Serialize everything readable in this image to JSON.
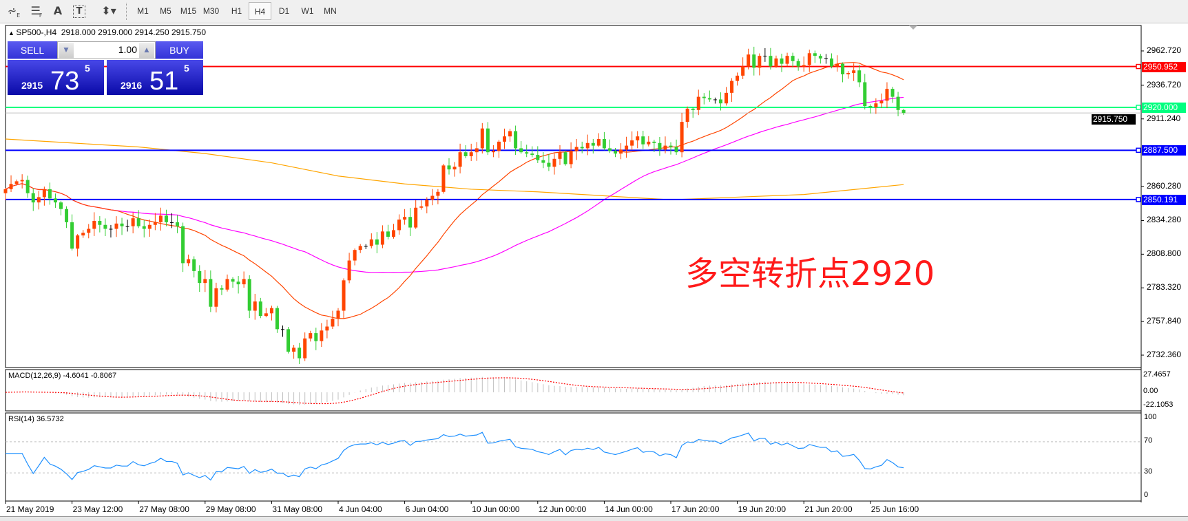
{
  "toolbar": {
    "tools": [
      "fibonacci-fan-icon",
      "fibonacci-lines-icon",
      "text-icon",
      "text-label-icon",
      "arrows-dropdown-icon"
    ],
    "periods": [
      "M1",
      "M5",
      "M15",
      "M30",
      "H1",
      "H4",
      "D1",
      "W1",
      "MN"
    ],
    "active_period": "H4"
  },
  "chart": {
    "title": "SP500-,H4",
    "ohlc": "2918.000 2919.000 2914.250 2915.750"
  },
  "trade_panel": {
    "sell_label": "SELL",
    "buy_label": "BUY",
    "lot": "1.00",
    "sell_big": "2915",
    "sell_pips": "73",
    "sell_frac": "5",
    "buy_big": "2916",
    "buy_pips": "51",
    "buy_frac": "5"
  },
  "annotation": "多空转折点2920",
  "price_axis": {
    "ticks": [
      "2962.720",
      "2936.720",
      "2911.240",
      "2860.280",
      "2834.280",
      "2808.800",
      "2783.320",
      "2757.840",
      "2732.360"
    ],
    "lines": [
      {
        "value": "2950.952",
        "color": "#FF0000",
        "text_color": "#FFFFFF"
      },
      {
        "value": "2920.000",
        "color": "#00FF7F",
        "text_color": "#FFFFFF"
      },
      {
        "value": "2887.500",
        "color": "#0000FF",
        "text_color": "#FFFFFF"
      },
      {
        "value": "2850.191",
        "color": "#0000FF",
        "text_color": "#FFFFFF"
      }
    ],
    "bid": {
      "value": "2915.750",
      "color": "#000000"
    }
  },
  "chart_data": {
    "type": "candlestick",
    "symbol": "SP500-",
    "timeframe": "H4",
    "time_labels": [
      "21 May 2019",
      "23 May 12:00",
      "27 May 08:00",
      "29 May 08:00",
      "31 May 08:00",
      "4 Jun 04:00",
      "6 Jun 04:00",
      "10 Jun 00:00",
      "12 Jun 00:00",
      "14 Jun 00:00",
      "17 Jun 20:00",
      "19 Jun 20:00",
      "21 Jun 20:00",
      "25 Jun 16:00"
    ],
    "ylim": [
      2720,
      2980
    ],
    "closes": [
      2858,
      2862,
      2864,
      2865,
      2855,
      2848,
      2852,
      2858,
      2851,
      2848,
      2843,
      2833,
      2813,
      2823,
      2825,
      2828,
      2834,
      2831,
      2828,
      2828,
      2832,
      2830,
      2830,
      2836,
      2830,
      2828,
      2831,
      2833,
      2838,
      2833,
      2833,
      2830,
      2802,
      2805,
      2796,
      2787,
      2790,
      2769,
      2783,
      2782,
      2790,
      2788,
      2786,
      2790,
      2766,
      2773,
      2762,
      2764,
      2768,
      2752,
      2752,
      2735,
      2738,
      2730,
      2745,
      2749,
      2743,
      2751,
      2754,
      2760,
      2766,
      2789,
      2804,
      2812,
      2815,
      2815,
      2820,
      2816,
      2826,
      2822,
      2827,
      2835,
      2837,
      2829,
      2844,
      2845,
      2850,
      2853,
      2856,
      2876,
      2873,
      2875,
      2886,
      2883,
      2886,
      2889,
      2904,
      2886,
      2887,
      2894,
      2898,
      2902,
      2889,
      2886,
      2885,
      2884,
      2880,
      2878,
      2875,
      2881,
      2886,
      2877,
      2887,
      2890,
      2889,
      2893,
      2891,
      2896,
      2889,
      2887,
      2885,
      2888,
      2891,
      2895,
      2898,
      2892,
      2894,
      2893,
      2888,
      2891,
      2890,
      2886,
      2909,
      2919,
      2918,
      2928,
      2927,
      2926,
      2926,
      2923,
      2931,
      2940,
      2944,
      2951,
      2960,
      2950,
      2959,
      2959,
      2951,
      2957,
      2953,
      2959,
      2955,
      2951,
      2952,
      2961,
      2959,
      2957,
      2957,
      2951,
      2953,
      2945,
      2946,
      2948,
      2939,
      2921,
      2920,
      2923,
      2925,
      2934,
      2928,
      2918,
      2915.75
    ],
    "last_bar": {
      "open": 2918.0,
      "high": 2919.0,
      "low": 2914.25,
      "close": 2915.75
    },
    "long_ma_at_labels": [
      2896,
      2893,
      2890,
      2885,
      2878,
      2868,
      2862,
      2858,
      2856,
      2853,
      2850,
      2852,
      2854,
      2859
    ],
    "colors": {
      "bull": "#FF4500",
      "bear": "#32CD32",
      "doji": "#000000",
      "ma_fast": "#FF4500",
      "ma_mid": "#FF00FF",
      "ma_long": "#FFA500"
    }
  },
  "macd": {
    "label": "MACD(12,26,9) -4.6041 -0.8067",
    "scale": [
      "27.4657",
      "0.00",
      "-22.1053"
    ],
    "colors": {
      "histogram": "#C0C0C0",
      "signal": "#FF0000"
    }
  },
  "rsi": {
    "label": "RSI(14) 36.5732",
    "scale": [
      "100",
      "70",
      "30",
      "0"
    ],
    "levels": [
      70,
      30
    ],
    "color": "#1E90FF"
  }
}
